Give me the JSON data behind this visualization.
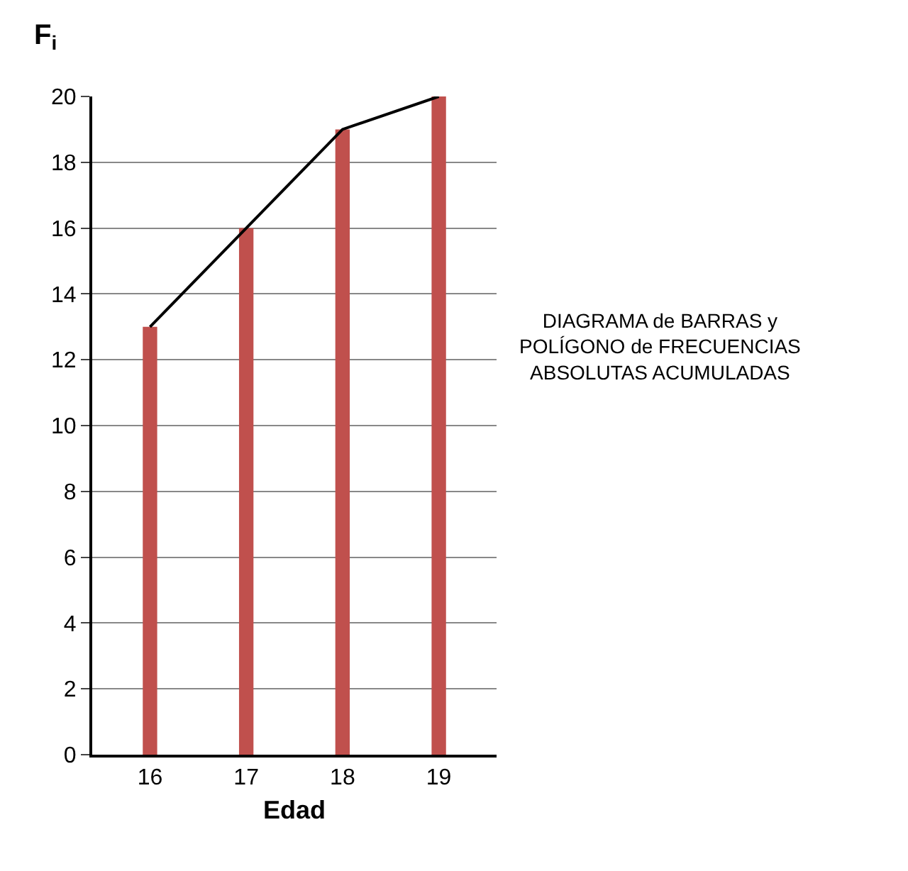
{
  "chart_data": {
    "type": "bar",
    "xlabel": "Edad",
    "ylabel": "F$_{i}$",
    "categories": [
      "16",
      "17",
      "18",
      "19"
    ],
    "series": [
      {
        "color": "#c0504d",
        "values": [
          13,
          16,
          19,
          20
        ]
      },
      {
        "type": "line",
        "color": "#000000",
        "values": [
          13,
          16,
          19,
          20
        ]
      }
    ],
    "ylim": [
      0,
      20
    ],
    "yticks": [
      0,
      2,
      4,
      6,
      8,
      10,
      12,
      14,
      16,
      18,
      20
    ],
    "grid": "y",
    "marker": "none",
    "annotations": [
      "DIAGRAMA de BARRAS y\nPOLÍGONO de FRECUENCIAS\nABSOLUTAS ACUMULADAS"
    ]
  }
}
